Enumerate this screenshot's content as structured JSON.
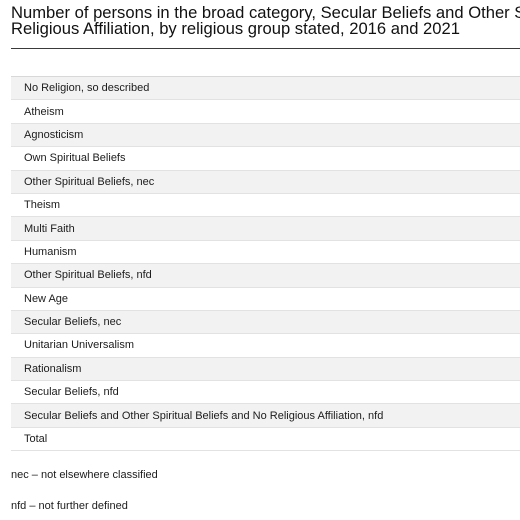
{
  "title": {
    "line1": "Number of persons in the broad category, Secular Beliefs and Other Spirit",
    "line2": "Religious Affiliation, by religious group stated, 2016 and 2021"
  },
  "table": {
    "rows": [
      "No Religion, so described",
      "Atheism",
      "Agnosticism",
      "Own Spiritual Beliefs",
      "Other Spiritual Beliefs, nec",
      "Theism",
      "Multi Faith",
      "Humanism",
      "Other Spiritual Beliefs, nfd",
      "New Age",
      "Secular Beliefs, nec",
      "Unitarian Universalism",
      "Rationalism",
      "Secular Beliefs, nfd",
      "Secular Beliefs and Other Spiritual Beliefs and No Religious Affiliation, nfd",
      "Total"
    ]
  },
  "notes": {
    "nec": "nec – not elsewhere classified",
    "nfd": "nfd – not further defined"
  }
}
